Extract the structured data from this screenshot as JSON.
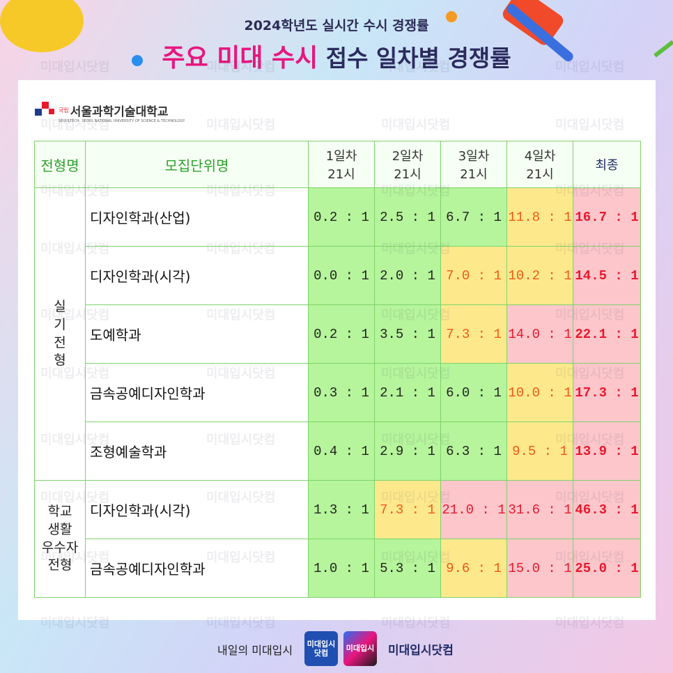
{
  "header": {
    "subtitle": "2024학년도 실시간 수시 경쟁률",
    "title_highlight": "주요 미대 수시",
    "title_rest": "접수 일차별 경쟁률"
  },
  "university": {
    "badge": "국립",
    "name": "서울과학기술대학교",
    "english": "SEOUL NATIONAL UNIVERSITY OF SCIENCE & TECHNOLOGY",
    "short": "SEOULTECH"
  },
  "watermark": "미대입시닷컴",
  "table": {
    "headers": [
      "전형명",
      "모집단위명",
      "1일차\n21시",
      "2일차\n21시",
      "3일차\n21시",
      "4일차\n21시",
      "최종"
    ],
    "groups": [
      {
        "name": "실\n기\n전\n형",
        "rows": [
          {
            "unit": "디자인학과(산업)",
            "cells": [
              {
                "text": "0.2 : 1",
                "fill": "#b6f59b",
                "text_color": "#222222"
              },
              {
                "text": "2.5 : 1",
                "fill": "#b6f59b",
                "text_color": "#222222"
              },
              {
                "text": "6.7 : 1",
                "fill": "#b6f59b",
                "text_color": "#222222"
              },
              {
                "text": "11.8 : 1",
                "fill": "#fde98c",
                "text_color": "#ef5a18"
              },
              {
                "text": "16.7 : 1",
                "fill": "#fcc6cb",
                "text_color": "#e8192c"
              }
            ]
          },
          {
            "unit": "디자인학과(시각)",
            "cells": [
              {
                "text": "0.0 : 1",
                "fill": "#b6f59b",
                "text_color": "#222222"
              },
              {
                "text": "2.0 : 1",
                "fill": "#b6f59b",
                "text_color": "#222222"
              },
              {
                "text": "7.0 : 1",
                "fill": "#fde98c",
                "text_color": "#ef5a18"
              },
              {
                "text": "10.2 : 1",
                "fill": "#fde98c",
                "text_color": "#ef5a18"
              },
              {
                "text": "14.5 : 1",
                "fill": "#fcc6cb",
                "text_color": "#e8192c"
              }
            ]
          },
          {
            "unit": "도예학과",
            "cells": [
              {
                "text": "0.2 : 1",
                "fill": "#b6f59b",
                "text_color": "#222222"
              },
              {
                "text": "3.5 : 1",
                "fill": "#b6f59b",
                "text_color": "#222222"
              },
              {
                "text": "7.3 : 1",
                "fill": "#fde98c",
                "text_color": "#ef5a18"
              },
              {
                "text": "14.0 : 1",
                "fill": "#fcc6cb",
                "text_color": "#e8192c"
              },
              {
                "text": "22.1 : 1",
                "fill": "#fcc6cb",
                "text_color": "#e8192c"
              }
            ]
          },
          {
            "unit": "금속공예디자인학과",
            "cells": [
              {
                "text": "0.3 : 1",
                "fill": "#b6f59b",
                "text_color": "#222222"
              },
              {
                "text": "2.1 : 1",
                "fill": "#b6f59b",
                "text_color": "#222222"
              },
              {
                "text": "6.0 : 1",
                "fill": "#b6f59b",
                "text_color": "#222222"
              },
              {
                "text": "10.0 : 1",
                "fill": "#fde98c",
                "text_color": "#ef5a18"
              },
              {
                "text": "17.3 : 1",
                "fill": "#fcc6cb",
                "text_color": "#e8192c"
              }
            ]
          },
          {
            "unit": "조형예술학과",
            "cells": [
              {
                "text": "0.4 : 1",
                "fill": "#b6f59b",
                "text_color": "#222222"
              },
              {
                "text": "2.9 : 1",
                "fill": "#b6f59b",
                "text_color": "#222222"
              },
              {
                "text": "6.3 : 1",
                "fill": "#b6f59b",
                "text_color": "#222222"
              },
              {
                "text": "9.5 : 1",
                "fill": "#fde98c",
                "text_color": "#ef5a18"
              },
              {
                "text": "13.9 : 1",
                "fill": "#fcc6cb",
                "text_color": "#e8192c"
              }
            ]
          }
        ]
      },
      {
        "name": "학교\n생활\n우수자\n전형",
        "rows": [
          {
            "unit": "디자인학과(시각)",
            "cells": [
              {
                "text": "1.3 : 1",
                "fill": "#b6f59b",
                "text_color": "#222222"
              },
              {
                "text": "7.3 : 1",
                "fill": "#fde98c",
                "text_color": "#ef5a18"
              },
              {
                "text": "21.0 : 1",
                "fill": "#fcc6cb",
                "text_color": "#e8192c"
              },
              {
                "text": "31.6 : 1",
                "fill": "#fcc6cb",
                "text_color": "#e8192c"
              },
              {
                "text": "46.3 : 1",
                "fill": "#fcc6cb",
                "text_color": "#e8192c"
              }
            ]
          },
          {
            "unit": "금속공예디자인학과",
            "cells": [
              {
                "text": "1.0 : 1",
                "fill": "#b6f59b",
                "text_color": "#222222"
              },
              {
                "text": "5.3 : 1",
                "fill": "#b6f59b",
                "text_color": "#222222"
              },
              {
                "text": "9.6 : 1",
                "fill": "#fde98c",
                "text_color": "#ef5a18"
              },
              {
                "text": "15.0 : 1",
                "fill": "#fcc6cb",
                "text_color": "#e8192c"
              },
              {
                "text": "25.0 : 1",
                "fill": "#fcc6cb",
                "text_color": "#e8192c"
              }
            ]
          }
        ]
      }
    ]
  },
  "footer": {
    "slogan": "내일의 미대입시",
    "logo1": "미대입시\n닷컴",
    "logo2": "미대입시",
    "brand": "미대입시닷컴"
  }
}
